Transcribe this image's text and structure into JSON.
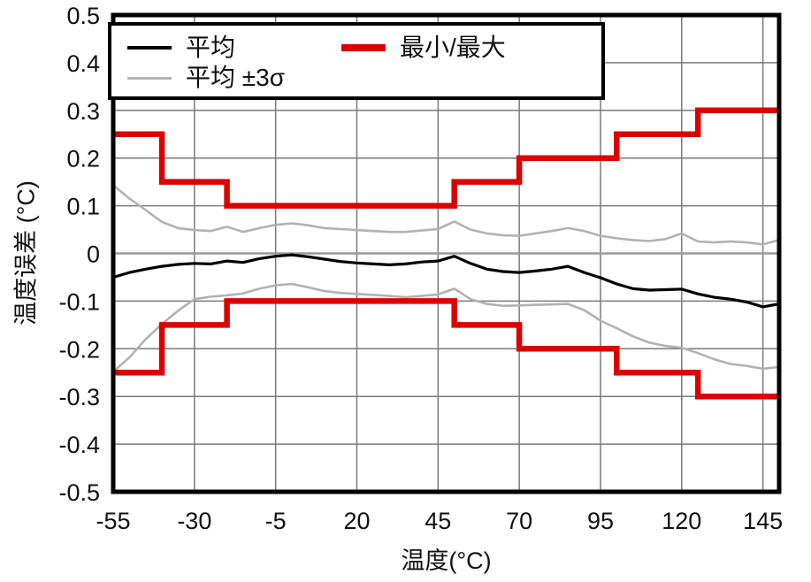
{
  "chart_data": {
    "type": "line",
    "title": "",
    "xlabel": "温度(°C)",
    "ylabel": "温度误差 (°C)",
    "xlim": [
      -55,
      150
    ],
    "ylim": [
      -0.5,
      0.5
    ],
    "grid": true,
    "x_ticks": [
      {
        "value": -55,
        "label": "-55"
      },
      {
        "value": -30,
        "label": "-30"
      },
      {
        "value": -5,
        "label": "-5"
      },
      {
        "value": 20,
        "label": "20"
      },
      {
        "value": 45,
        "label": "45"
      },
      {
        "value": 70,
        "label": "70"
      },
      {
        "value": 95,
        "label": "95"
      },
      {
        "value": 120,
        "label": "120"
      },
      {
        "value": 145,
        "label": "145"
      }
    ],
    "y_ticks": [
      {
        "value": 0.5,
        "label": "0.5"
      },
      {
        "value": 0.4,
        "label": "0.4"
      },
      {
        "value": 0.3,
        "label": "0.3"
      },
      {
        "value": 0.2,
        "label": "0.2"
      },
      {
        "value": 0.1,
        "label": "0.1"
      },
      {
        "value": 0,
        "label": "0"
      },
      {
        "value": -0.1,
        "label": "-0.1"
      },
      {
        "value": -0.2,
        "label": "-0.2"
      },
      {
        "value": -0.3,
        "label": "-0.3"
      },
      {
        "value": -0.4,
        "label": "-0.4"
      },
      {
        "value": -0.5,
        "label": "-0.5"
      }
    ],
    "legend": {
      "position": "top-left",
      "mean": "平均",
      "sigma": "平均 ±3σ",
      "minmax": "最小/最大"
    },
    "colors": {
      "mean": "#000000",
      "sigma": "#b2b2b2",
      "minmax": "#dd0000",
      "grid": "#7a7a7a",
      "zero_line": "#9a9a9a",
      "border": "#000000"
    },
    "series": [
      {
        "name": "平均+3σ",
        "kind": "sigma-upper",
        "color": "#b2b2b2",
        "width": 2.6,
        "x": [
          -55,
          -50,
          -45,
          -40,
          -35,
          -30,
          -25,
          -20,
          -15,
          -10,
          -5,
          0,
          5,
          10,
          15,
          20,
          25,
          30,
          35,
          40,
          45,
          50,
          55,
          60,
          65,
          70,
          75,
          80,
          85,
          90,
          95,
          100,
          105,
          110,
          115,
          120,
          125,
          130,
          135,
          140,
          145,
          150
        ],
        "y": [
          0.143,
          0.115,
          0.091,
          0.066,
          0.053,
          0.049,
          0.047,
          0.056,
          0.045,
          0.053,
          0.06,
          0.063,
          0.059,
          0.053,
          0.051,
          0.049,
          0.047,
          0.045,
          0.045,
          0.048,
          0.051,
          0.067,
          0.05,
          0.042,
          0.038,
          0.037,
          0.042,
          0.047,
          0.053,
          0.047,
          0.037,
          0.032,
          0.028,
          0.026,
          0.03,
          0.042,
          0.025,
          0.023,
          0.025,
          0.023,
          0.019,
          0.028
        ]
      },
      {
        "name": "平均-3σ",
        "kind": "sigma-lower",
        "color": "#b2b2b2",
        "width": 2.6,
        "x": [
          -55,
          -50,
          -45,
          -40,
          -35,
          -30,
          -25,
          -20,
          -15,
          -10,
          -5,
          0,
          5,
          10,
          15,
          20,
          25,
          30,
          35,
          40,
          45,
          50,
          55,
          60,
          65,
          70,
          75,
          80,
          85,
          90,
          95,
          100,
          105,
          110,
          115,
          120,
          125,
          130,
          135,
          140,
          145,
          150
        ],
        "y": [
          -0.248,
          -0.218,
          -0.18,
          -0.148,
          -0.12,
          -0.096,
          -0.091,
          -0.088,
          -0.084,
          -0.074,
          -0.067,
          -0.064,
          -0.071,
          -0.079,
          -0.083,
          -0.085,
          -0.087,
          -0.089,
          -0.092,
          -0.089,
          -0.086,
          -0.074,
          -0.096,
          -0.106,
          -0.11,
          -0.109,
          -0.108,
          -0.107,
          -0.106,
          -0.119,
          -0.141,
          -0.157,
          -0.174,
          -0.187,
          -0.194,
          -0.198,
          -0.209,
          -0.222,
          -0.232,
          -0.236,
          -0.242,
          -0.238
        ]
      },
      {
        "name": "平均",
        "kind": "mean",
        "color": "#000000",
        "width": 3.2,
        "x": [
          -55,
          -50,
          -45,
          -40,
          -35,
          -30,
          -25,
          -20,
          -15,
          -10,
          -5,
          0,
          5,
          10,
          15,
          20,
          25,
          30,
          35,
          40,
          45,
          50,
          55,
          60,
          65,
          70,
          75,
          80,
          85,
          90,
          95,
          100,
          105,
          110,
          115,
          120,
          125,
          130,
          135,
          140,
          145,
          150
        ],
        "y": [
          -0.05,
          -0.04,
          -0.033,
          -0.027,
          -0.023,
          -0.021,
          -0.022,
          -0.016,
          -0.019,
          -0.011,
          -0.006,
          -0.003,
          -0.007,
          -0.012,
          -0.017,
          -0.02,
          -0.022,
          -0.024,
          -0.022,
          -0.018,
          -0.016,
          -0.006,
          -0.021,
          -0.033,
          -0.038,
          -0.04,
          -0.037,
          -0.033,
          -0.027,
          -0.04,
          -0.051,
          -0.064,
          -0.074,
          -0.077,
          -0.076,
          -0.075,
          -0.085,
          -0.092,
          -0.096,
          -0.102,
          -0.112,
          -0.106
        ]
      },
      {
        "name": "最大",
        "kind": "max",
        "color": "#dd0000",
        "width": 6.5,
        "x": [
          -55,
          -40,
          -40,
          -20,
          -20,
          50,
          50,
          70,
          70,
          100,
          100,
          125,
          125,
          150
        ],
        "y": [
          0.25,
          0.25,
          0.15,
          0.15,
          0.1,
          0.1,
          0.15,
          0.15,
          0.2,
          0.2,
          0.25,
          0.25,
          0.3,
          0.3
        ]
      },
      {
        "name": "最小",
        "kind": "min",
        "color": "#dd0000",
        "width": 6.5,
        "x": [
          -55,
          -40,
          -40,
          -20,
          -20,
          50,
          50,
          70,
          70,
          100,
          100,
          125,
          125,
          150
        ],
        "y": [
          -0.25,
          -0.25,
          -0.15,
          -0.15,
          -0.1,
          -0.1,
          -0.15,
          -0.15,
          -0.2,
          -0.2,
          -0.25,
          -0.25,
          -0.3,
          -0.3
        ]
      }
    ]
  }
}
